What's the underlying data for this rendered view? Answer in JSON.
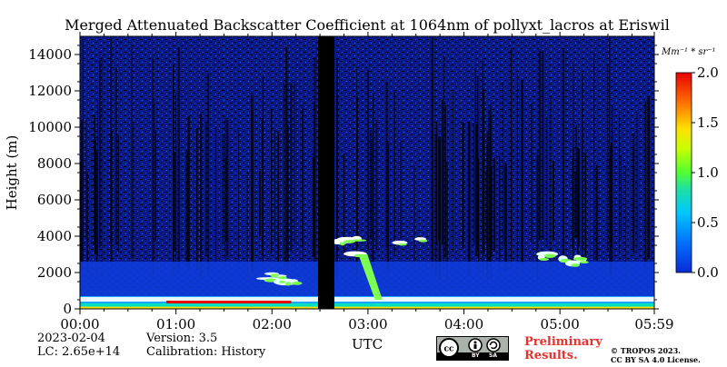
{
  "chart_data": {
    "type": "heatmap",
    "title": "Merged Attenuated Backscatter Coefficient at 1064nm of pollyxt_lacros at Eriswil",
    "ylabel": "Height (m)",
    "xlabel": "UTC",
    "x_ticks": [
      "00:00",
      "01:00",
      "02:00",
      "03:00",
      "04:00",
      "05:00",
      "05:59"
    ],
    "x_range_hours": [
      0,
      5.983
    ],
    "y_ticks": [
      "0",
      "2000",
      "4000",
      "6000",
      "8000",
      "10000",
      "12000",
      "14000"
    ],
    "ylim": [
      0,
      15000
    ],
    "colorbar": {
      "unit_label": "Mm⁻¹ * sr⁻¹",
      "ticks": [
        "0.0",
        "0.5",
        "1.0",
        "1.5",
        "2.0"
      ],
      "range": [
        0,
        2.0
      ],
      "colormap": "jet"
    },
    "data_gap_hours": [
      2.48,
      2.65
    ],
    "features": [
      {
        "name": "boundary layer",
        "start_h": 0,
        "end_h": 5.98,
        "height_m": [
          0,
          700
        ],
        "intensity": "high"
      },
      {
        "name": "aerosol/cloud patches",
        "start_h": 1.95,
        "end_h": 2.3,
        "height_m": [
          1400,
          2000
        ],
        "intensity": "medium"
      },
      {
        "name": "cloud layer",
        "start_h": 2.7,
        "end_h": 3.6,
        "height_m": [
          3000,
          3900
        ],
        "intensity": "high"
      },
      {
        "name": "fall streak",
        "start_h": 2.9,
        "end_h": 3.15,
        "height_m": [
          500,
          3000
        ],
        "intensity": "high"
      },
      {
        "name": "cloud patches",
        "start_h": 4.8,
        "end_h": 5.25,
        "height_m": [
          2300,
          3500
        ],
        "intensity": "medium"
      }
    ]
  },
  "footer": {
    "date": "2023-02-04",
    "lc": "LC: 2.65e+14",
    "version": "Version: 3.5",
    "calibration": "Calibration: History",
    "preliminary_1": "Preliminary",
    "preliminary_2": "Results.",
    "copyright_1": "© TROPOS 2023.",
    "copyright_2": "CC BY SA 4.0 License.",
    "cc_by": "BY",
    "cc_sa": "SA"
  },
  "colors": {
    "background_fill": "#0a1a8a",
    "gap": "#000000"
  }
}
